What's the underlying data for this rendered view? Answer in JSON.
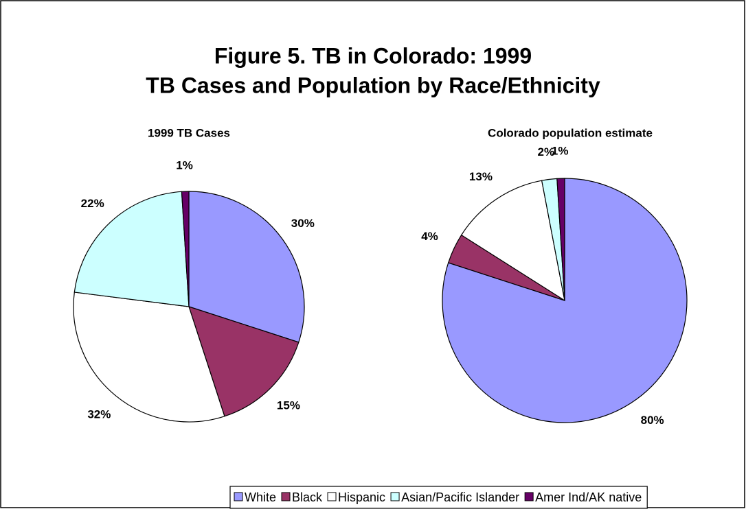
{
  "title": "Figure 5.  TB in Colorado:  1999",
  "subtitle": "TB Cases and Population by Race/Ethnicity",
  "legend": {
    "categories": [
      "White",
      "Black",
      "Hispanic",
      "Asian/Pacific Islander",
      "Amer Ind/AK native"
    ],
    "colors": [
      "#9999ff",
      "#993366",
      "#ffffff",
      "#ccffff",
      "#660066"
    ]
  },
  "chart_data": [
    {
      "type": "pie",
      "title": "1999 TB Cases",
      "values": [
        30,
        15,
        32,
        22,
        1
      ],
      "value_labels": [
        "30%",
        "15%",
        "32%",
        "22%",
        "1%"
      ]
    },
    {
      "type": "pie",
      "title": "Colorado population estimate",
      "values": [
        80,
        4,
        13,
        2,
        1
      ],
      "value_labels": [
        "80%",
        "4%",
        "13%",
        "2%",
        "1%"
      ]
    }
  ]
}
